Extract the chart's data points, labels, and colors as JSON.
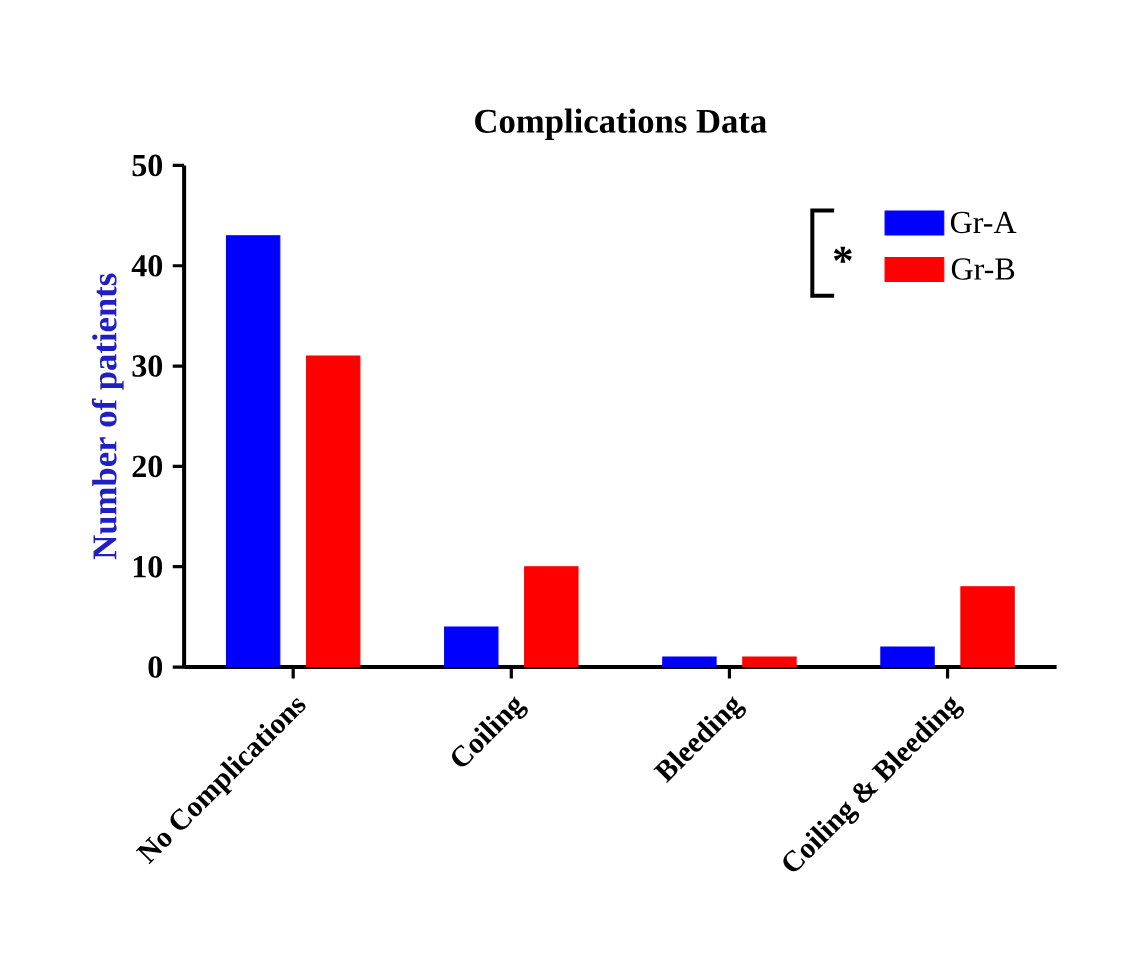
{
  "chart_data": {
    "type": "bar",
    "title": "Complications Data",
    "ylabel": "Number of patients",
    "categories": [
      "No Complications",
      "Coiling",
      "Bleeding",
      "Coiling & Bleeding"
    ],
    "series": [
      {
        "name": "Gr-A",
        "color": "#0000ff",
        "values": [
          43,
          4,
          1,
          2
        ]
      },
      {
        "name": "Gr-B",
        "color": "#ff0000",
        "values": [
          31,
          10,
          1,
          8
        ]
      }
    ],
    "ylim": [
      0,
      50
    ],
    "yticks": [
      0,
      10,
      20,
      30,
      40,
      50
    ],
    "grid": false,
    "legend": "top right",
    "annotations": [
      "*"
    ]
  }
}
